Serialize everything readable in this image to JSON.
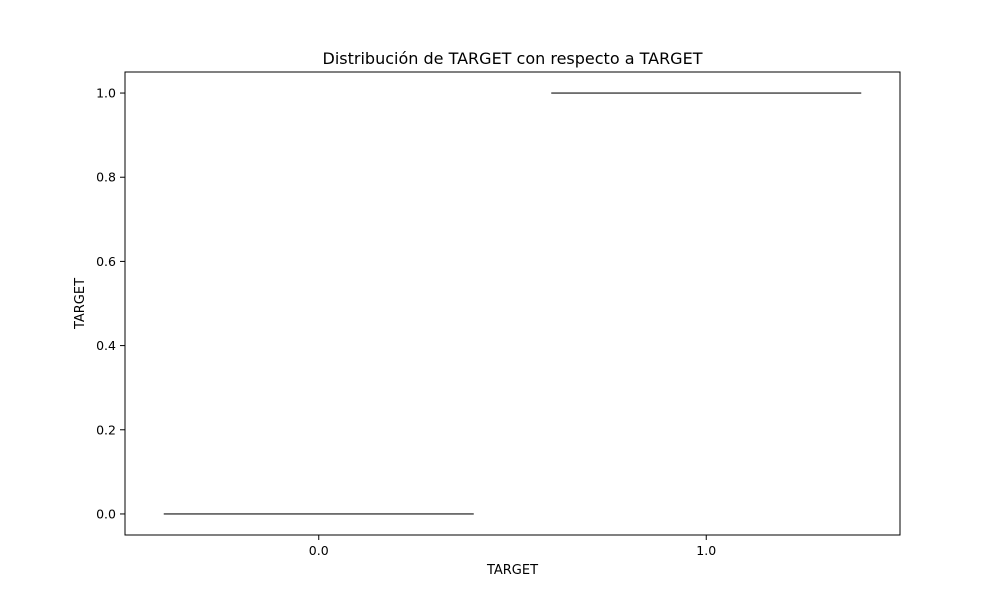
{
  "chart_data": {
    "type": "box",
    "title": "Distribución de TARGET con respecto a TARGET",
    "xlabel": "TARGET",
    "ylabel": "TARGET",
    "categories": [
      "0.0",
      "1.0"
    ],
    "series": [
      {
        "values": [
          0.0,
          1.0
        ]
      }
    ],
    "ylim": [
      -0.05,
      1.05
    ],
    "yticks": [
      "0.0",
      "0.2",
      "0.4",
      "0.6",
      "0.8",
      "1.0"
    ],
    "grid": false,
    "colors": {
      "box_line": "#3d3d3d",
      "axes": "#000000"
    }
  }
}
